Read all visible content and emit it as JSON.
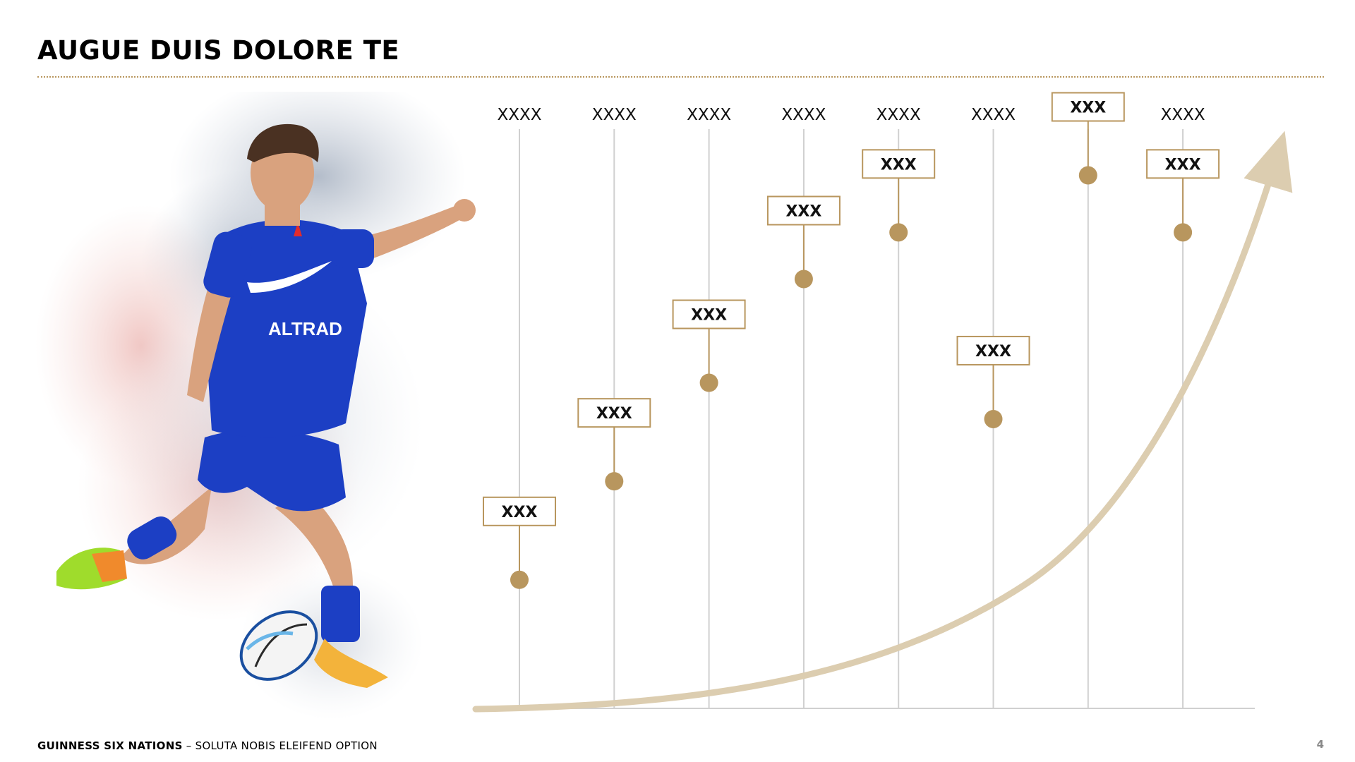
{
  "slide": {
    "title": "AUGUE DUIS DOLORE TE"
  },
  "columns": [
    {
      "label": "XXXX",
      "value": "XXX",
      "level": 0.12
    },
    {
      "label": "XXXX",
      "value": "XXX",
      "level": 0.31
    },
    {
      "label": "XXXX",
      "value": "XXX",
      "level": 0.5
    },
    {
      "label": "XXXX",
      "value": "XXX",
      "level": 0.7
    },
    {
      "label": "XXXX",
      "value": "XXX",
      "level": 0.79
    },
    {
      "label": "XXXX",
      "value": "XXX",
      "level": 0.43
    },
    {
      "label": "XXXX",
      "value": "XXX",
      "level": 0.9
    },
    {
      "label": "XXXX",
      "value": "XXX",
      "level": 0.79
    }
  ],
  "colors": {
    "accent": "#b8965e",
    "curve": "#dccdb0",
    "gridline": "#d0d0d0",
    "jersey": "#1c3fc4"
  },
  "footer": {
    "brand": "GUINNESS SIX NATIONS",
    "separator": " – ",
    "subtitle": "SOLUTA NOBIS ELEIFEND OPTION"
  },
  "page": {
    "number": "4"
  },
  "image": {
    "subject": "rugby-player-kicking-icon"
  }
}
